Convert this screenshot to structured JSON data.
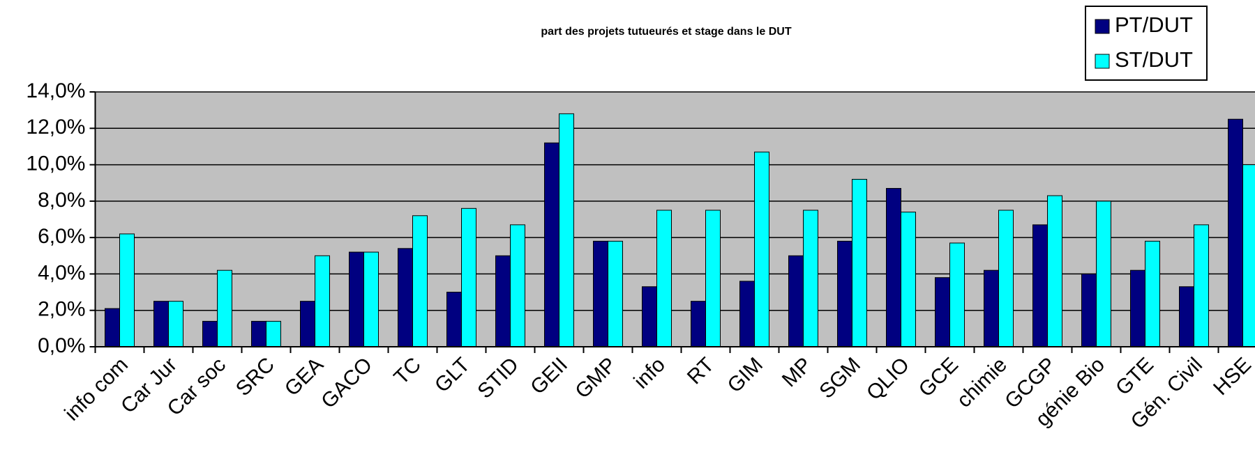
{
  "chart_data": {
    "type": "bar",
    "title": "part des projets tutueurés et stage dans le DUT",
    "categories": [
      "info com",
      "Car Jur",
      "Car soc",
      "SRC",
      "GEA",
      "GACO",
      "TC",
      "GLT",
      "STID",
      "GEII",
      "GMP",
      "info",
      "RT",
      "GIM",
      "MP",
      "SGM",
      "QLIO",
      "GCE",
      "chimie",
      "GCGP",
      "génie Bio",
      "GTE",
      "Gén. Civil",
      "HSE"
    ],
    "series": [
      {
        "name": "PT/DUT",
        "color": "#000080",
        "values": [
          2.1,
          2.5,
          1.4,
          1.4,
          2.5,
          5.2,
          5.4,
          3.0,
          5.0,
          11.2,
          5.8,
          3.3,
          2.5,
          3.6,
          5.0,
          5.8,
          8.7,
          3.8,
          4.2,
          6.7,
          4.0,
          4.2,
          3.3,
          12.5
        ]
      },
      {
        "name": "ST/DUT",
        "color": "#00ffff",
        "values": [
          6.2,
          2.5,
          4.2,
          1.4,
          5.0,
          5.2,
          7.2,
          7.6,
          6.7,
          12.8,
          5.8,
          7.5,
          7.5,
          10.7,
          7.5,
          9.2,
          7.4,
          5.7,
          7.5,
          8.3,
          8.0,
          5.8,
          6.7,
          10.0
        ]
      }
    ],
    "ylim": [
      0,
      14
    ],
    "yticks": [
      {
        "value": 0,
        "label": "0,0%"
      },
      {
        "value": 2,
        "label": "2,0%"
      },
      {
        "value": 4,
        "label": "4,0%"
      },
      {
        "value": 6,
        "label": "6,0%"
      },
      {
        "value": 8,
        "label": "8,0%"
      },
      {
        "value": 10,
        "label": "10,0%"
      },
      {
        "value": 12,
        "label": "12,0%"
      },
      {
        "value": 14,
        "label": "14,0%"
      }
    ],
    "grid": true,
    "legend": "top-right",
    "plot_background": "#c0c0c0"
  }
}
